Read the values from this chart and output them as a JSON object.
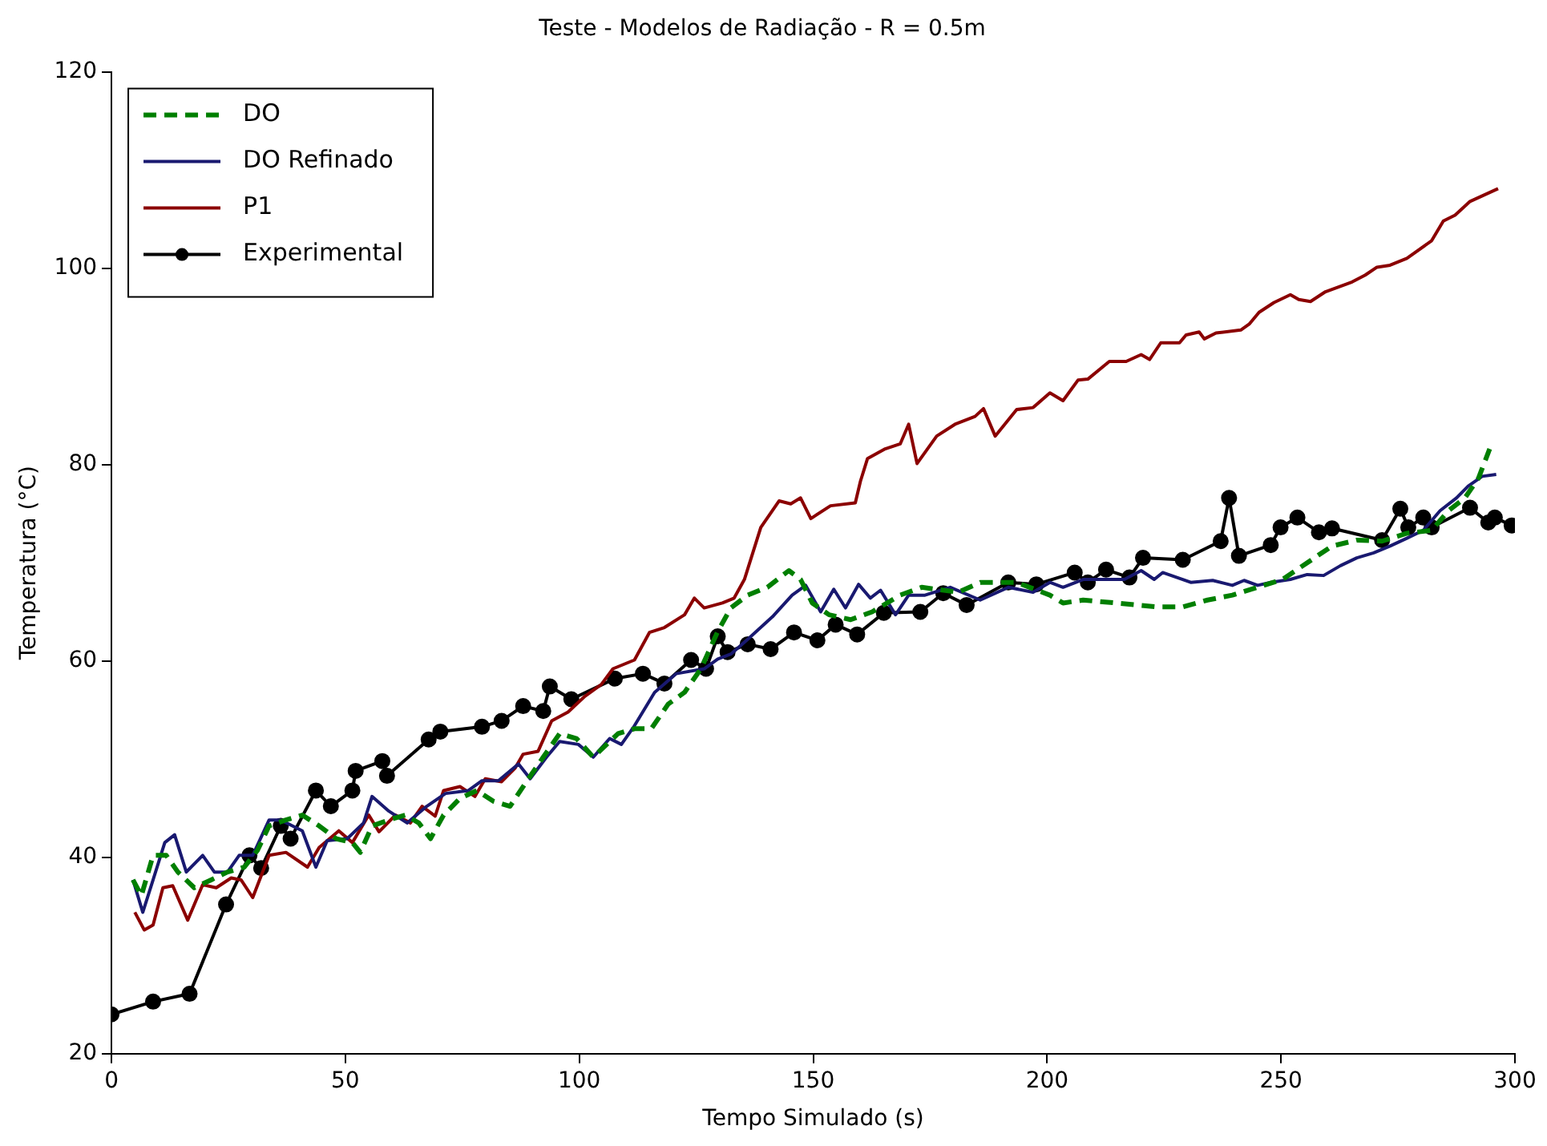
{
  "chart_data": {
    "type": "line",
    "title": "Teste - Modelos de Radiação - R = 0.5m",
    "xlabel": "Tempo Simulado (s)",
    "ylabel": "Temperatura (°C)",
    "xlim": [
      0,
      300
    ],
    "ylim": [
      20,
      120
    ],
    "xticks": [
      0,
      50,
      100,
      150,
      200,
      250,
      300
    ],
    "yticks": [
      20,
      40,
      60,
      80,
      100,
      120
    ],
    "grid": false,
    "legend": "top left",
    "series": [
      {
        "name": "DO",
        "color": "#007f00",
        "line_style": "dashed",
        "marker": "none",
        "x": [
          4.6,
          6.4,
          8.9,
          11.7,
          14.2,
          17.7,
          21.3,
          24.8,
          28.4,
          31.2,
          33.7,
          37.3,
          40.8,
          44.4,
          48,
          51.5,
          53.2,
          55.7,
          59.3,
          62.8,
          65.7,
          68.2,
          71,
          74.5,
          78.1,
          81.7,
          85.2,
          88.7,
          92.3,
          95.8,
          99.4,
          103,
          108.3,
          111.8,
          115.4,
          119,
          122.5,
          126,
          129.6,
          132.4,
          136,
          140.2,
          144.8,
          147.3,
          149.8,
          153.4,
          158,
          162.6,
          168.6,
          173.2,
          181,
          185.7,
          193.5,
          200.6,
          203.4,
          207.7,
          214.8,
          223.6,
          229,
          234.3,
          239.6,
          245,
          250.3,
          255.6,
          260.9,
          266.2,
          271.6,
          276.9,
          282.2,
          285.8,
          289.3,
          292.2,
          294.6
        ],
        "values": [
          37.7,
          36.1,
          40.2,
          40.2,
          38.5,
          36.9,
          37.7,
          38.5,
          39.0,
          40.7,
          43.2,
          43.8,
          44.3,
          43.2,
          41.9,
          41.5,
          40.5,
          43.2,
          43.8,
          44.3,
          43.5,
          41.9,
          44.3,
          46.0,
          46.8,
          45.7,
          45.2,
          47.7,
          50.2,
          52.6,
          52.1,
          50.2,
          52.6,
          53.1,
          53.1,
          55.6,
          56.8,
          59.2,
          63.0,
          65.4,
          66.7,
          67.5,
          69.2,
          68.3,
          65.9,
          64.7,
          64.2,
          65.0,
          66.7,
          67.5,
          67.0,
          68.0,
          68.0,
          66.7,
          65.9,
          66.2,
          65.9,
          65.5,
          65.5,
          66.2,
          66.7,
          67.5,
          68.3,
          70.0,
          71.7,
          72.3,
          72.2,
          73.0,
          73.3,
          75.3,
          76.6,
          78.6,
          81.6
        ]
      },
      {
        "name": "DO Refinado",
        "color": "#191970",
        "marker": "none",
        "x": [
          4.6,
          6.7,
          8.9,
          11.4,
          13.5,
          16,
          19.5,
          22,
          24.8,
          27.3,
          30.2,
          33.7,
          36.2,
          40.8,
          43.7,
          46.1,
          50.4,
          53.9,
          55.7,
          59.3,
          63.2,
          67.4,
          71.4,
          76.3,
          79.2,
          82.7,
          87,
          89.5,
          93,
          95.8,
          99.8,
          103,
          106.5,
          109,
          111.8,
          116.1,
          120.7,
          126.7,
          129.6,
          132.4,
          136,
          141.3,
          145.5,
          148.4,
          151.6,
          154.4,
          156.9,
          159.7,
          162.2,
          164.4,
          167.6,
          170.4,
          173.9,
          179.3,
          185.7,
          191.7,
          197,
          200.6,
          203.4,
          207.7,
          212,
          216.5,
          220.1,
          222.9,
          224.7,
          229,
          230.7,
          235.4,
          239.6,
          242.1,
          245,
          247.8,
          252,
          255.6,
          259.1,
          262.7,
          266.2,
          269.8,
          273.3,
          276.9,
          280.4,
          284,
          287.5,
          290,
          293,
          296
        ],
        "values": [
          37.7,
          34.4,
          37.7,
          41.5,
          42.3,
          38.5,
          40.2,
          38.5,
          38.5,
          40.2,
          40.2,
          43.8,
          43.8,
          42.7,
          39.0,
          41.7,
          41.9,
          43.5,
          46.2,
          44.7,
          43.5,
          45.2,
          46.5,
          46.8,
          47.8,
          47.8,
          49.5,
          48.0,
          50.2,
          51.8,
          51.5,
          50.2,
          52.1,
          51.5,
          53.4,
          56.8,
          58.7,
          59.2,
          60.2,
          60.7,
          62.2,
          64.5,
          66.7,
          67.7,
          65.0,
          67.3,
          65.4,
          67.8,
          66.4,
          67.2,
          64.7,
          66.7,
          66.7,
          67.5,
          66.2,
          67.5,
          67.0,
          68.0,
          67.5,
          68.3,
          68.3,
          68.3,
          69.2,
          68.3,
          69.0,
          68.3,
          68.0,
          68.2,
          67.7,
          68.2,
          67.7,
          68.0,
          68.3,
          68.8,
          68.7,
          69.7,
          70.5,
          71.0,
          71.7,
          72.5,
          73.3,
          75.3,
          76.6,
          77.8,
          78.8,
          79.0
        ]
      },
      {
        "name": "P1",
        "color": "#8b0000",
        "marker": "none",
        "x": [
          5,
          7,
          8.9,
          11,
          13.1,
          16.3,
          19.5,
          22.4,
          25.6,
          27.7,
          30.2,
          33.7,
          37.3,
          41.9,
          44.4,
          48.6,
          51.5,
          55,
          57.2,
          60.7,
          63.9,
          66.4,
          69.2,
          71,
          74.5,
          77.7,
          79.9,
          83.4,
          86.3,
          88,
          91.2,
          94.1,
          97.6,
          101.2,
          104.7,
          107.2,
          111.8,
          115,
          118.2,
          122.5,
          124.6,
          126.7,
          130.6,
          133.1,
          135.3,
          138.8,
          142.7,
          145.2,
          147.3,
          149.5,
          153.7,
          159,
          160.1,
          161.6,
          165.4,
          168.6,
          170.4,
          172.2,
          176.4,
          180.3,
          184.6,
          186.4,
          188.9,
          193.5,
          197,
          200.6,
          203.4,
          206.6,
          208.7,
          213.3,
          216.9,
          220.1,
          221.9,
          224.3,
          228.3,
          229.7,
          232.5,
          233.6,
          236.1,
          241.4,
          243.2,
          245.3,
          248.5,
          252,
          253.8,
          256.3,
          259.5,
          265.2,
          268,
          270.5,
          273.3,
          276.9,
          282.2,
          284.7,
          287.2,
          290.4,
          296.4
        ],
        "values": [
          34.4,
          32.6,
          33.1,
          36.9,
          37.1,
          33.6,
          37.2,
          36.9,
          37.9,
          37.7,
          35.9,
          40.2,
          40.5,
          39.0,
          41.0,
          42.7,
          41.5,
          44.3,
          42.6,
          44.3,
          43.5,
          45.2,
          44.2,
          46.8,
          47.2,
          46.2,
          48.0,
          47.7,
          49.1,
          50.5,
          50.8,
          53.9,
          54.8,
          56.4,
          57.6,
          59.2,
          60.1,
          62.9,
          63.4,
          64.7,
          66.4,
          65.4,
          65.9,
          66.4,
          68.3,
          73.6,
          76.3,
          76.0,
          76.6,
          74.5,
          75.8,
          76.1,
          78.3,
          80.6,
          81.6,
          82.1,
          84.1,
          80.1,
          82.9,
          84.1,
          84.9,
          85.7,
          82.9,
          85.6,
          85.8,
          87.3,
          86.5,
          88.6,
          88.7,
          90.5,
          90.5,
          91.2,
          90.7,
          92.4,
          92.4,
          93.2,
          93.5,
          92.8,
          93.4,
          93.7,
          94.3,
          95.5,
          96.5,
          97.3,
          96.8,
          96.6,
          97.6,
          98.6,
          99.3,
          100.1,
          100.3,
          101.0,
          102.8,
          104.8,
          105.4,
          106.8,
          108.1
        ]
      },
      {
        "name": "Experimental",
        "color": "#000000",
        "marker": "circle",
        "x": [
          0,
          8.9,
          16.7,
          24.5,
          29.5,
          32,
          36.2,
          38.3,
          43.7,
          46.9,
          51.5,
          52.2,
          57.9,
          58.9,
          67.8,
          70.3,
          79.2,
          83.4,
          88,
          92.3,
          93.7,
          98.3,
          107.6,
          113.6,
          118.2,
          123.9,
          127.1,
          129.6,
          131.7,
          136,
          140.9,
          145.9,
          150.9,
          154.8,
          159.4,
          165.1,
          172.9,
          177.8,
          182.8,
          191.7,
          197.7,
          205.9,
          208.7,
          212.6,
          217.6,
          220.5,
          229,
          237.1,
          238.9,
          241,
          247.8,
          249.9,
          253.5,
          258.1,
          260.9,
          271.6,
          275.5,
          277.2,
          280.4,
          282.2,
          290.4,
          294.3,
          295.7,
          299.3
        ],
        "values": [
          24.0,
          25.3,
          26.1,
          35.2,
          40.2,
          38.9,
          43.2,
          41.9,
          46.8,
          45.2,
          46.8,
          48.8,
          49.8,
          48.3,
          52.0,
          52.8,
          53.3,
          53.9,
          55.4,
          54.9,
          57.4,
          56.1,
          58.2,
          58.7,
          57.7,
          60.1,
          59.2,
          62.5,
          60.9,
          61.7,
          61.2,
          62.9,
          62.1,
          63.7,
          62.7,
          64.9,
          65.0,
          66.9,
          65.7,
          68.0,
          67.8,
          69.0,
          68.0,
          69.3,
          68.5,
          70.5,
          70.3,
          72.2,
          76.6,
          70.7,
          71.8,
          73.6,
          74.6,
          73.1,
          73.5,
          72.3,
          75.5,
          73.6,
          74.6,
          73.6,
          75.6,
          74.1,
          74.6,
          73.8
        ]
      }
    ]
  }
}
